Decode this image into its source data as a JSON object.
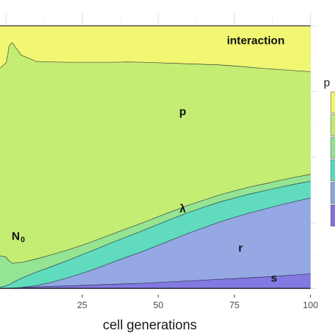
{
  "chart_data": {
    "type": "area",
    "stacked": true,
    "normalized": true,
    "xlabel": "cell generations",
    "ylabel": "",
    "title": "",
    "xlim": [
      -2,
      102
    ],
    "ylim": [
      0,
      1.05
    ],
    "x_ticks": [
      25,
      50,
      75,
      100
    ],
    "grid": true,
    "legend_title": "p",
    "legend_position": "right (cropped)",
    "x": [
      -2,
      0,
      1,
      2,
      5,
      10,
      15,
      20,
      25,
      30,
      35,
      40,
      45,
      50,
      55,
      60,
      65,
      70,
      75,
      80,
      85,
      90,
      95,
      100
    ],
    "series": [
      {
        "name": "s",
        "color": "#7b72e0",
        "values": [
          0.0,
          0.0,
          0.0,
          0.002,
          0.004,
          0.006,
          0.008,
          0.01,
          0.012,
          0.014,
          0.016,
          0.018,
          0.02,
          0.023,
          0.026,
          0.029,
          0.032,
          0.035,
          0.038,
          0.041,
          0.044,
          0.048,
          0.052,
          0.056
        ]
      },
      {
        "name": "r",
        "color": "#8fa3e3",
        "values": [
          0.0,
          0.0,
          0.0,
          0.0,
          0.0,
          0.005,
          0.016,
          0.03,
          0.046,
          0.064,
          0.084,
          0.103,
          0.122,
          0.142,
          0.162,
          0.182,
          0.2,
          0.218,
          0.233,
          0.247,
          0.259,
          0.27,
          0.28,
          0.289
        ]
      },
      {
        "name": "λ",
        "color": "#57d9ba",
        "values": [
          0.005,
          0.01,
          0.015,
          0.02,
          0.035,
          0.052,
          0.06,
          0.066,
          0.071,
          0.074,
          0.076,
          0.078,
          0.079,
          0.08,
          0.08,
          0.079,
          0.078,
          0.076,
          0.074,
          0.072,
          0.07,
          0.068,
          0.066,
          0.064
        ]
      },
      {
        "name": "N0",
        "label_parts": [
          "N",
          "0"
        ],
        "color": "#8ee38e",
        "values": [
          0.12,
          0.11,
          0.09,
          0.075,
          0.06,
          0.05,
          0.045,
          0.04,
          0.036,
          0.034,
          0.032,
          0.031,
          0.03,
          0.029,
          0.028,
          0.028,
          0.027,
          0.027,
          0.027,
          0.027,
          0.026,
          0.026,
          0.026,
          0.026
        ]
      },
      {
        "name": "p",
        "color": "#c0ec6c",
        "values": [
          0.715,
          0.74,
          0.82,
          0.84,
          0.79,
          0.752,
          0.734,
          0.716,
          0.697,
          0.676,
          0.654,
          0.633,
          0.611,
          0.586,
          0.562,
          0.538,
          0.517,
          0.496,
          0.476,
          0.456,
          0.439,
          0.422,
          0.406,
          0.391
        ]
      },
      {
        "name": "interaction",
        "color": "#f0f56c",
        "values": [
          0.16,
          0.14,
          0.075,
          0.063,
          0.111,
          0.135,
          0.137,
          0.138,
          0.138,
          0.138,
          0.138,
          0.137,
          0.138,
          0.14,
          0.142,
          0.144,
          0.146,
          0.148,
          0.152,
          0.157,
          0.162,
          0.166,
          0.17,
          0.174
        ]
      }
    ],
    "annotations": [
      {
        "text": "interaction",
        "series": "interaction",
        "x": 82,
        "y": 0.93
      },
      {
        "text": "p",
        "series": "p",
        "x": 58,
        "y": 0.66
      },
      {
        "text": "λ",
        "series": "λ",
        "x": 58,
        "y": 0.29
      },
      {
        "text": "r",
        "series": "r",
        "x": 77,
        "y": 0.14
      },
      {
        "text": "s",
        "series": "s",
        "x": 88,
        "y": 0.025
      },
      {
        "text_parts": [
          "N",
          "0"
        ],
        "series": "N0",
        "x": 4,
        "y": 0.185
      }
    ],
    "legend_colors": [
      "#f0f56c",
      "#c0ec6c",
      "#8ee38e",
      "#57d9ba",
      "#8fa3e3",
      "#7b72e0"
    ]
  }
}
